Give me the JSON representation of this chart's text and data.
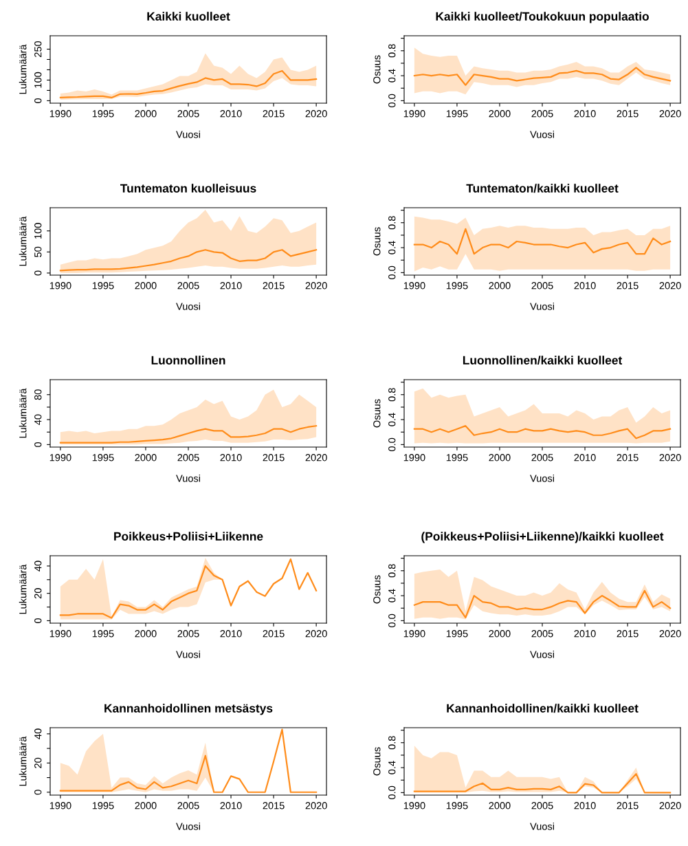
{
  "chart_data": [
    {
      "type": "line",
      "title": "Kaikki kuolleet",
      "xlabel": "Vuosi",
      "ylabel": "Lukumäärä",
      "xlim": [
        1988.8,
        2021.2
      ],
      "xticks": [
        1990,
        1995,
        2000,
        2005,
        2010,
        2015,
        2020
      ],
      "ylim": [
        -12,
        315
      ],
      "yticks": [
        0,
        {
          "value": 50,
          "label": null
        },
        100,
        {
          "value": 150,
          "label": null
        },
        {
          "value": 200,
          "label": null
        },
        250
      ],
      "x": [
        1990,
        1991,
        1992,
        1993,
        1994,
        1995,
        1996,
        1997,
        1998,
        1999,
        2000,
        2001,
        2002,
        2003,
        2004,
        2005,
        2006,
        2007,
        2008,
        2009,
        2010,
        2011,
        2012,
        2013,
        2014,
        2015,
        2016,
        2017,
        2018,
        2019,
        2020
      ],
      "series": [
        {
          "color": "#ff8c1a",
          "values": [
            15,
            17,
            18,
            20,
            22,
            22,
            15,
            32,
            33,
            32,
            38,
            45,
            48,
            60,
            72,
            82,
            90,
            110,
            100,
            105,
            80,
            80,
            78,
            70,
            85,
            130,
            145,
            100,
            100,
            100,
            105
          ],
          "lower": [
            5,
            6,
            7,
            8,
            8,
            8,
            8,
            20,
            20,
            18,
            25,
            30,
            32,
            40,
            50,
            60,
            65,
            80,
            75,
            75,
            55,
            55,
            55,
            50,
            60,
            95,
            110,
            80,
            75,
            75,
            70
          ],
          "upper": [
            35,
            40,
            50,
            45,
            55,
            45,
            30,
            50,
            50,
            50,
            60,
            70,
            80,
            100,
            120,
            120,
            140,
            230,
            170,
            160,
            130,
            170,
            130,
            110,
            140,
            200,
            210,
            150,
            140,
            150,
            170
          ]
        }
      ]
    },
    {
      "type": "line",
      "title": "Kaikki kuolleet/Toukokuun populaatio",
      "xlabel": "Vuosi",
      "ylabel": "Osuus",
      "xlim": [
        1988.8,
        2021.2
      ],
      "xticks": [
        1990,
        1995,
        2000,
        2005,
        2010,
        2015,
        2020
      ],
      "ylim": [
        -0.04,
        1.04
      ],
      "yticks": [
        {
          "value": 0,
          "label": "0.0"
        },
        {
          "value": 0.2,
          "label": null
        },
        0.4,
        {
          "value": 0.6,
          "label": null
        },
        0.8,
        {
          "value": 1.0,
          "label": null
        }
      ],
      "x": [
        1990,
        1991,
        1992,
        1993,
        1994,
        1995,
        1996,
        1997,
        1998,
        1999,
        2000,
        2001,
        2002,
        2003,
        2004,
        2005,
        2006,
        2007,
        2008,
        2009,
        2010,
        2011,
        2012,
        2013,
        2014,
        2015,
        2016,
        2017,
        2018,
        2019,
        2020
      ],
      "series": [
        {
          "color": "#ff8c1a",
          "values": [
            0.4,
            0.42,
            0.4,
            0.42,
            0.4,
            0.42,
            0.25,
            0.42,
            0.4,
            0.38,
            0.35,
            0.35,
            0.32,
            0.34,
            0.36,
            0.37,
            0.38,
            0.44,
            0.45,
            0.48,
            0.44,
            0.44,
            0.42,
            0.35,
            0.34,
            0.42,
            0.53,
            0.42,
            0.38,
            0.35,
            0.32
          ],
          "lower": [
            0.12,
            0.15,
            0.15,
            0.12,
            0.15,
            0.15,
            0.1,
            0.3,
            0.28,
            0.25,
            0.25,
            0.25,
            0.22,
            0.25,
            0.25,
            0.28,
            0.3,
            0.35,
            0.35,
            0.38,
            0.35,
            0.35,
            0.32,
            0.27,
            0.25,
            0.35,
            0.45,
            0.35,
            0.32,
            0.28,
            0.25
          ],
          "upper": [
            0.85,
            0.75,
            0.72,
            0.7,
            0.72,
            0.72,
            0.4,
            0.55,
            0.52,
            0.5,
            0.48,
            0.48,
            0.45,
            0.45,
            0.48,
            0.48,
            0.5,
            0.55,
            0.58,
            0.62,
            0.55,
            0.55,
            0.52,
            0.45,
            0.45,
            0.55,
            0.62,
            0.5,
            0.48,
            0.45,
            0.42
          ]
        }
      ]
    },
    {
      "type": "line",
      "title": "Tuntematon kuolleisuus",
      "xlabel": "Vuosi",
      "ylabel": "Lukumäärä",
      "xlim": [
        1988.8,
        2021.2
      ],
      "xticks": [
        1990,
        1995,
        2000,
        2005,
        2010,
        2015,
        2020
      ],
      "ylim": [
        -5,
        155
      ],
      "yticks": [
        0,
        50,
        100
      ],
      "x": [
        1990,
        1991,
        1992,
        1993,
        1994,
        1995,
        1996,
        1997,
        1998,
        1999,
        2000,
        2001,
        2002,
        2003,
        2004,
        2005,
        2006,
        2007,
        2008,
        2009,
        2010,
        2011,
        2012,
        2013,
        2014,
        2015,
        2016,
        2017,
        2018,
        2019,
        2020
      ],
      "series": [
        {
          "color": "#ff8c1a",
          "values": [
            6,
            7,
            8,
            8,
            9,
            9,
            9,
            10,
            12,
            14,
            17,
            20,
            24,
            28,
            35,
            40,
            50,
            55,
            50,
            48,
            35,
            28,
            30,
            30,
            35,
            50,
            55,
            40,
            45,
            50,
            55
          ],
          "lower": [
            0,
            0,
            0,
            1,
            1,
            1,
            1,
            2,
            3,
            4,
            5,
            6,
            7,
            8,
            10,
            12,
            15,
            18,
            15,
            15,
            12,
            10,
            10,
            10,
            12,
            15,
            18,
            15,
            15,
            18,
            20
          ],
          "upper": [
            20,
            25,
            30,
            30,
            35,
            32,
            35,
            35,
            40,
            45,
            55,
            60,
            65,
            75,
            100,
            120,
            130,
            150,
            120,
            125,
            100,
            135,
            100,
            95,
            110,
            130,
            125,
            95,
            100,
            110,
            120
          ]
        }
      ]
    },
    {
      "type": "line",
      "title": "Tuntematon/kaikki kuolleet",
      "xlabel": "Vuosi",
      "ylabel": "Osuus",
      "xlim": [
        1988.8,
        2021.2
      ],
      "xticks": [
        1990,
        1995,
        2000,
        2005,
        2010,
        2015,
        2020
      ],
      "ylim": [
        -0.04,
        1.04
      ],
      "yticks": [
        {
          "value": 0,
          "label": "0.0"
        },
        {
          "value": 0.2,
          "label": null
        },
        0.4,
        {
          "value": 0.6,
          "label": null
        },
        0.8,
        {
          "value": 1.0,
          "label": null
        }
      ],
      "x": [
        1990,
        1991,
        1992,
        1993,
        1994,
        1995,
        1996,
        1997,
        1998,
        1999,
        2000,
        2001,
        2002,
        2003,
        2004,
        2005,
        2006,
        2007,
        2008,
        2009,
        2010,
        2011,
        2012,
        2013,
        2014,
        2015,
        2016,
        2017,
        2018,
        2019,
        2020
      ],
      "series": [
        {
          "color": "#ff8c1a",
          "values": [
            0.45,
            0.45,
            0.4,
            0.5,
            0.45,
            0.3,
            0.7,
            0.3,
            0.4,
            0.45,
            0.45,
            0.4,
            0.5,
            0.48,
            0.45,
            0.45,
            0.45,
            0.42,
            0.4,
            0.45,
            0.48,
            0.32,
            0.38,
            0.4,
            0.45,
            0.48,
            0.3,
            0.3,
            0.55,
            0.45,
            0.5
          ],
          "lower": [
            0.02,
            0.08,
            0.05,
            0.1,
            0.05,
            0.05,
            0.3,
            0.05,
            0.05,
            0.05,
            0.03,
            0.05,
            0.05,
            0.05,
            0.05,
            0.05,
            0.05,
            0.05,
            0.05,
            0.05,
            0.05,
            0.05,
            0.05,
            0.05,
            0.05,
            0.05,
            0.03,
            0.03,
            0.05,
            0.05,
            0.05
          ],
          "upper": [
            0.9,
            0.88,
            0.85,
            0.85,
            0.82,
            0.78,
            0.88,
            0.6,
            0.7,
            0.72,
            0.75,
            0.72,
            0.75,
            0.75,
            0.72,
            0.72,
            0.7,
            0.7,
            0.7,
            0.72,
            0.72,
            0.6,
            0.65,
            0.65,
            0.68,
            0.7,
            0.6,
            0.6,
            0.7,
            0.7,
            0.75
          ]
        }
      ]
    },
    {
      "type": "line",
      "title": "Luonnollinen",
      "xlabel": "Vuosi",
      "ylabel": "Lukumäärä",
      "xlim": [
        1988.8,
        2021.2
      ],
      "xticks": [
        1990,
        1995,
        2000,
        2005,
        2010,
        2015,
        2020
      ],
      "ylim": [
        -4,
        104
      ],
      "yticks": [
        0,
        {
          "value": 20,
          "label": null
        },
        40,
        {
          "value": 60,
          "label": null
        },
        80
      ],
      "x": [
        1990,
        1991,
        1992,
        1993,
        1994,
        1995,
        1996,
        1997,
        1998,
        1999,
        2000,
        2001,
        2002,
        2003,
        2004,
        2005,
        2006,
        2007,
        2008,
        2009,
        2010,
        2011,
        2012,
        2013,
        2014,
        2015,
        2016,
        2017,
        2018,
        2019,
        2020
      ],
      "series": [
        {
          "color": "#ff8c1a",
          "values": [
            3,
            3,
            3,
            3,
            3,
            3,
            3,
            4,
            4,
            5,
            6,
            7,
            8,
            10,
            14,
            18,
            22,
            25,
            22,
            22,
            12,
            12,
            13,
            15,
            18,
            25,
            25,
            20,
            25,
            28,
            30
          ],
          "lower": [
            0,
            0,
            0,
            0,
            0,
            0,
            0,
            0,
            0,
            0,
            1,
            1,
            1,
            2,
            3,
            5,
            6,
            8,
            6,
            6,
            3,
            3,
            3,
            4,
            5,
            8,
            8,
            7,
            8,
            9,
            12
          ],
          "upper": [
            20,
            22,
            20,
            22,
            18,
            20,
            22,
            22,
            25,
            25,
            30,
            30,
            32,
            40,
            50,
            55,
            60,
            72,
            65,
            70,
            45,
            40,
            45,
            55,
            80,
            88,
            60,
            65,
            80,
            70,
            60
          ]
        }
      ]
    },
    {
      "type": "line",
      "title": "Luonnollinen/kaikki kuolleet",
      "xlabel": "Vuosi",
      "ylabel": "Osuus",
      "xlim": [
        1988.8,
        2021.2
      ],
      "xticks": [
        1990,
        1995,
        2000,
        2005,
        2010,
        2015,
        2020
      ],
      "ylim": [
        -0.04,
        1.04
      ],
      "yticks": [
        {
          "value": 0,
          "label": "0.0"
        },
        {
          "value": 0.2,
          "label": null
        },
        0.4,
        {
          "value": 0.6,
          "label": null
        },
        0.8,
        {
          "value": 1.0,
          "label": null
        }
      ],
      "x": [
        1990,
        1991,
        1992,
        1993,
        1994,
        1995,
        1996,
        1997,
        1998,
        1999,
        2000,
        2001,
        2002,
        2003,
        2004,
        2005,
        2006,
        2007,
        2008,
        2009,
        2010,
        2011,
        2012,
        2013,
        2014,
        2015,
        2016,
        2017,
        2018,
        2019,
        2020
      ],
      "series": [
        {
          "color": "#ff8c1a",
          "values": [
            0.25,
            0.25,
            0.2,
            0.25,
            0.2,
            0.25,
            0.3,
            0.15,
            0.18,
            0.2,
            0.25,
            0.2,
            0.2,
            0.25,
            0.22,
            0.22,
            0.25,
            0.22,
            0.2,
            0.22,
            0.2,
            0.15,
            0.15,
            0.18,
            0.22,
            0.25,
            0.1,
            0.15,
            0.22,
            0.22,
            0.25
          ],
          "lower": [
            0.02,
            0.03,
            0.02,
            0.03,
            0.02,
            0.03,
            0.02,
            0.02,
            0.02,
            0.03,
            0.03,
            0.03,
            0.03,
            0.03,
            0.03,
            0.03,
            0.03,
            0.03,
            0.03,
            0.03,
            0.03,
            0.03,
            0.03,
            0.03,
            0.03,
            0.03,
            0.02,
            0.03,
            0.03,
            0.03,
            0.05
          ],
          "upper": [
            0.85,
            0.9,
            0.75,
            0.8,
            0.75,
            0.78,
            0.8,
            0.45,
            0.5,
            0.55,
            0.6,
            0.45,
            0.5,
            0.55,
            0.65,
            0.5,
            0.5,
            0.5,
            0.45,
            0.55,
            0.5,
            0.4,
            0.45,
            0.45,
            0.55,
            0.6,
            0.35,
            0.45,
            0.6,
            0.5,
            0.55
          ]
        }
      ]
    },
    {
      "type": "line",
      "title": "Poikkeus+Poliisi+Liikenne",
      "xlabel": "Vuosi",
      "ylabel": "Lukumäärä",
      "xlim": [
        1988.8,
        2021.2
      ],
      "xticks": [
        1990,
        1995,
        2000,
        2005,
        2010,
        2015,
        2020
      ],
      "ylim": [
        -1.8,
        47.5
      ],
      "yticks": [
        0,
        {
          "value": 10,
          "label": null
        },
        20,
        {
          "value": 30,
          "label": null
        },
        40
      ],
      "x": [
        1990,
        1991,
        1992,
        1993,
        1994,
        1995,
        1996,
        1997,
        1998,
        1999,
        2000,
        2001,
        2002,
        2003,
        2004,
        2005,
        2006,
        2007,
        2008,
        2009,
        2010,
        2011,
        2012,
        2013,
        2014,
        2015,
        2016,
        2017,
        2018,
        2019,
        2020
      ],
      "series": [
        {
          "color": "#ff8c1a",
          "values": [
            4,
            4,
            5,
            5,
            5,
            5,
            2,
            12,
            11,
            8,
            8,
            12,
            8,
            14,
            17,
            20,
            22,
            40,
            33,
            30,
            11,
            25,
            29,
            21,
            18,
            27,
            31,
            45,
            23,
            35,
            22
          ],
          "lower": [
            1,
            1,
            1,
            1,
            1,
            1,
            1,
            8,
            5,
            5,
            5,
            7,
            5,
            8,
            10,
            10,
            12,
            28,
            30,
            30,
            11,
            25,
            29,
            21,
            18,
            27,
            31,
            45,
            23,
            35,
            22
          ],
          "upper": [
            25,
            30,
            30,
            38,
            30,
            45,
            3,
            15,
            14,
            10,
            10,
            15,
            10,
            17,
            20,
            23,
            25,
            46,
            35,
            30,
            11,
            25,
            29,
            21,
            18,
            27,
            31,
            45,
            23,
            35,
            22
          ]
        }
      ]
    },
    {
      "type": "line",
      "title": "(Poikkeus+Poliisi+Liikenne)/kaikki kuolleet",
      "xlabel": "Vuosi",
      "ylabel": "Osuus",
      "xlim": [
        1988.8,
        2021.2
      ],
      "xticks": [
        1990,
        1995,
        2000,
        2005,
        2010,
        2015,
        2020
      ],
      "ylim": [
        -0.04,
        1.04
      ],
      "yticks": [
        {
          "value": 0,
          "label": "0.0"
        },
        {
          "value": 0.2,
          "label": null
        },
        0.4,
        {
          "value": 0.6,
          "label": null
        },
        0.8,
        {
          "value": 1.0,
          "label": null
        }
      ],
      "x": [
        1990,
        1991,
        1992,
        1993,
        1994,
        1995,
        1996,
        1997,
        1998,
        1999,
        2000,
        2001,
        2002,
        2003,
        2004,
        2005,
        2006,
        2007,
        2008,
        2009,
        2010,
        2011,
        2012,
        2013,
        2014,
        2015,
        2016,
        2017,
        2018,
        2019,
        2020
      ],
      "series": [
        {
          "color": "#ff8c1a",
          "values": [
            0.25,
            0.3,
            0.3,
            0.3,
            0.25,
            0.25,
            0.05,
            0.4,
            0.3,
            0.28,
            0.22,
            0.22,
            0.18,
            0.2,
            0.18,
            0.18,
            0.22,
            0.28,
            0.32,
            0.3,
            0.12,
            0.3,
            0.4,
            0.32,
            0.23,
            0.22,
            0.22,
            0.48,
            0.22,
            0.3,
            0.2
          ],
          "lower": [
            0.03,
            0.05,
            0.05,
            0.03,
            0.05,
            0.05,
            0.02,
            0.25,
            0.15,
            0.12,
            0.1,
            0.1,
            0.08,
            0.1,
            0.08,
            0.08,
            0.1,
            0.15,
            0.22,
            0.22,
            0.1,
            0.25,
            0.32,
            0.25,
            0.17,
            0.18,
            0.18,
            0.38,
            0.18,
            0.22,
            0.15
          ],
          "upper": [
            0.75,
            0.78,
            0.8,
            0.82,
            0.7,
            0.8,
            0.15,
            0.7,
            0.65,
            0.55,
            0.5,
            0.45,
            0.4,
            0.4,
            0.45,
            0.4,
            0.45,
            0.6,
            0.5,
            0.45,
            0.18,
            0.45,
            0.62,
            0.45,
            0.35,
            0.3,
            0.3,
            0.58,
            0.3,
            0.42,
            0.35
          ]
        }
      ]
    },
    {
      "type": "line",
      "title": "Kannanhoidollinen metsästys",
      "xlabel": "Vuosi",
      "ylabel": "Lukumäärä",
      "xlim": [
        1988.8,
        2021.2
      ],
      "xticks": [
        1990,
        1995,
        2000,
        2005,
        2010,
        2015,
        2020
      ],
      "ylim": [
        -2,
        44.2
      ],
      "yticks": [
        0,
        {
          "value": 10,
          "label": null
        },
        20,
        {
          "value": 30,
          "label": null
        },
        40
      ],
      "x": [
        1990,
        1991,
        1992,
        1993,
        1994,
        1995,
        1996,
        1997,
        1998,
        1999,
        2000,
        2001,
        2002,
        2003,
        2004,
        2005,
        2006,
        2007,
        2008,
        2009,
        2010,
        2011,
        2012,
        2013,
        2014,
        2015,
        2016,
        2017,
        2018,
        2019,
        2020
      ],
      "series": [
        {
          "color": "#ff8c1a",
          "values": [
            1,
            1,
            1,
            1,
            1,
            1,
            1,
            5,
            7,
            3,
            2,
            7,
            3,
            4,
            6,
            8,
            6,
            25,
            0,
            0,
            11,
            9,
            0,
            0,
            0,
            21,
            43,
            0,
            0,
            0,
            0
          ],
          "lower": [
            0,
            0,
            0,
            0,
            0,
            0,
            0,
            1,
            2,
            1,
            0,
            2,
            1,
            1,
            2,
            2,
            1,
            10,
            0,
            0,
            11,
            9,
            0,
            0,
            0,
            21,
            43,
            0,
            0,
            0,
            0
          ],
          "upper": [
            20,
            18,
            12,
            28,
            35,
            40,
            3,
            10,
            10,
            6,
            5,
            11,
            6,
            10,
            13,
            15,
            12,
            34,
            0,
            0,
            11,
            9,
            0,
            0,
            0,
            21,
            43,
            0,
            0,
            0,
            0
          ]
        }
      ]
    },
    {
      "type": "line",
      "title": "Kannanhoidollinen/kaikki kuolleet",
      "xlabel": "Vuosi",
      "ylabel": "Osuus",
      "xlim": [
        1988.8,
        2021.2
      ],
      "xticks": [
        1990,
        1995,
        2000,
        2005,
        2010,
        2015,
        2020
      ],
      "ylim": [
        -0.04,
        1.04
      ],
      "yticks": [
        {
          "value": 0,
          "label": "0.0"
        },
        {
          "value": 0.2,
          "label": null
        },
        0.4,
        {
          "value": 0.6,
          "label": null
        },
        0.8,
        {
          "value": 1.0,
          "label": null
        }
      ],
      "x": [
        1990,
        1991,
        1992,
        1993,
        1994,
        1995,
        1996,
        1997,
        1998,
        1999,
        2000,
        2001,
        2002,
        2003,
        2004,
        2005,
        2006,
        2007,
        2008,
        2009,
        2010,
        2011,
        2012,
        2013,
        2014,
        2015,
        2016,
        2017,
        2018,
        2019,
        2020
      ],
      "series": [
        {
          "color": "#ff8c1a",
          "values": [
            0.02,
            0.02,
            0.02,
            0.02,
            0.02,
            0.02,
            0.02,
            0.1,
            0.15,
            0.05,
            0.05,
            0.08,
            0.05,
            0.05,
            0.06,
            0.06,
            0.05,
            0.1,
            0,
            0,
            0.14,
            0.12,
            0,
            0,
            0,
            0.15,
            0.3,
            0,
            0,
            0,
            0
          ],
          "lower": [
            0,
            0,
            0,
            0,
            0,
            0,
            0,
            0.02,
            0.03,
            0.01,
            0.01,
            0.02,
            0.01,
            0.01,
            0.01,
            0.01,
            0.01,
            0.03,
            0,
            0,
            0.1,
            0.08,
            0,
            0,
            0,
            0.1,
            0.22,
            0,
            0,
            0,
            0
          ],
          "upper": [
            0.75,
            0.6,
            0.55,
            0.65,
            0.65,
            0.6,
            0.08,
            0.35,
            0.35,
            0.25,
            0.25,
            0.35,
            0.25,
            0.25,
            0.25,
            0.25,
            0.22,
            0.25,
            0,
            0,
            0.25,
            0.18,
            0,
            0,
            0,
            0.2,
            0.4,
            0,
            0,
            0,
            0
          ]
        }
      ]
    }
  ]
}
